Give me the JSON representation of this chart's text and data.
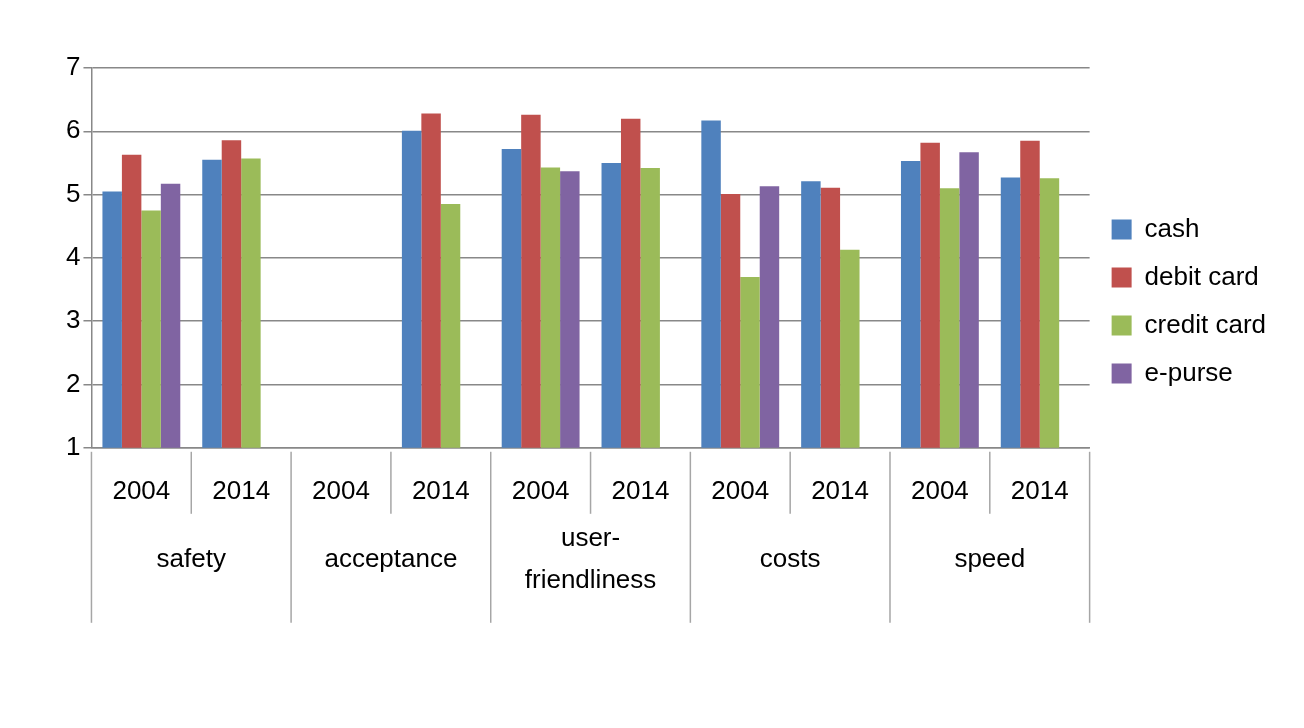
{
  "chart_data": {
    "type": "bar",
    "categories": [
      "2004",
      "2014",
      "2004",
      "2014",
      "2004",
      "2014",
      "2004",
      "2014",
      "2004",
      "2014"
    ],
    "annotations": [
      "safety",
      "acceptance",
      "user-friendliness",
      "costs",
      "speed"
    ],
    "series": [
      {
        "name": "cash",
        "color": "#4f81bd",
        "values": [
          5.05,
          5.55,
          null,
          6.01,
          5.72,
          5.5,
          6.17,
          5.21,
          5.53,
          5.27
        ]
      },
      {
        "name": "debit card",
        "color": "#c0504d",
        "values": [
          5.63,
          5.86,
          null,
          6.28,
          6.26,
          6.2,
          5.01,
          5.11,
          5.82,
          5.85
        ]
      },
      {
        "name": "credit card",
        "color": "#9bbb59",
        "values": [
          4.75,
          5.57,
          null,
          4.85,
          5.43,
          5.42,
          3.7,
          4.13,
          5.1,
          5.26
        ]
      },
      {
        "name": "e-purse",
        "color": "#8064a2",
        "values": [
          5.17,
          null,
          null,
          null,
          5.37,
          null,
          5.13,
          null,
          5.67,
          null
        ]
      }
    ],
    "ylim": [
      1,
      7
    ],
    "yticks": [
      1,
      2,
      3,
      4,
      5,
      6,
      7
    ],
    "grid": "y",
    "legend": "right"
  }
}
